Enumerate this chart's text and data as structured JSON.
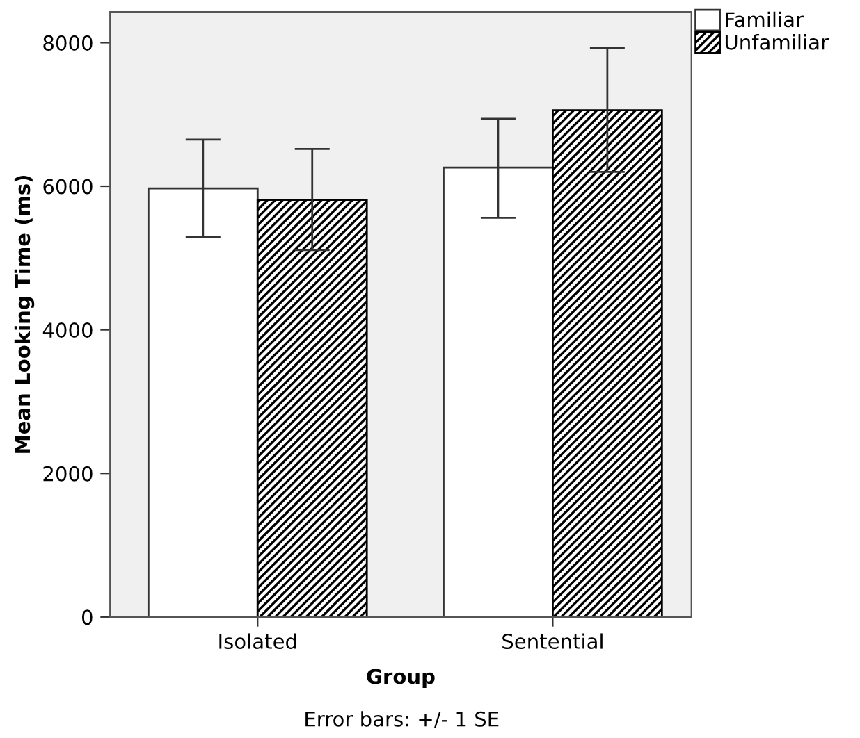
{
  "chart_data": {
    "type": "bar",
    "xlabel": "Group",
    "ylabel": "Mean Looking Time (ms)",
    "categories": [
      "Isolated",
      "Sentential"
    ],
    "series": [
      {
        "name": "Familiar",
        "color": "#ffffff",
        "values": [
          5970,
          6260
        ],
        "errors": [
          [
            5290,
            6650
          ],
          [
            5560,
            6940
          ]
        ]
      },
      {
        "name": "Unfamiliar",
        "color": "#000000",
        "values": [
          5810,
          7060
        ],
        "errors": [
          [
            5110,
            6520
          ],
          [
            6200,
            7930
          ]
        ]
      }
    ],
    "ylim": [
      0,
      8430
    ],
    "yticks": [
      0,
      2000,
      4000,
      6000,
      8000
    ],
    "grid": false,
    "legend": "top right",
    "annotations": [
      "Error bars: +/- 1 SE"
    ]
  }
}
